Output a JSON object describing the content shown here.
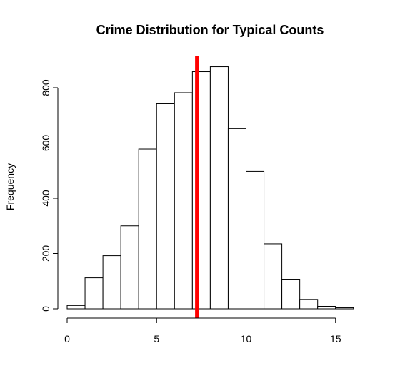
{
  "chart_data": {
    "type": "bar",
    "subtype": "histogram",
    "title": "Crime Distribution for Typical Counts",
    "xlabel": "",
    "ylabel": "Frequency",
    "bin_edges": [
      0,
      1,
      2,
      3,
      4,
      5,
      6,
      7,
      8,
      9,
      10,
      11,
      12,
      13,
      14,
      15,
      16
    ],
    "values": [
      12,
      112,
      192,
      300,
      578,
      742,
      782,
      858,
      876,
      652,
      497,
      235,
      107,
      34,
      9,
      4
    ],
    "x_ticks": [
      0,
      5,
      10,
      15
    ],
    "y_ticks": [
      0,
      200,
      400,
      600,
      800
    ],
    "xlim": [
      0,
      16
    ],
    "ylim": [
      0,
      876
    ],
    "reference_line": {
      "x": 7.25,
      "color": "#ff0000"
    },
    "bar_fill": "#ffffff",
    "bar_stroke": "#000000",
    "grid": false
  }
}
